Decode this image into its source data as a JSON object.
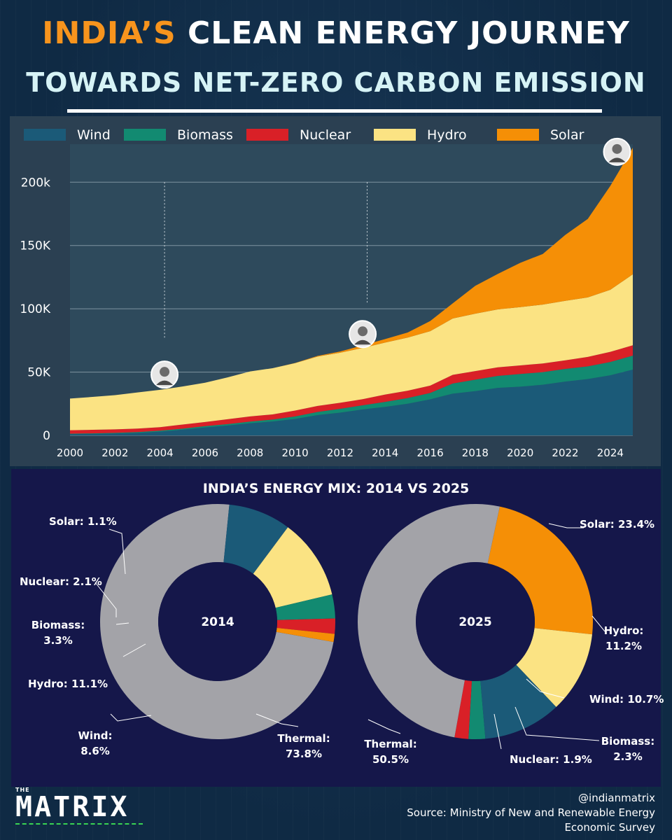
{
  "header": {
    "title_accent": "INDIA’S",
    "title_rest": "CLEAN ENERGY JOURNEY",
    "subtitle": "TOWARDS NET-ZERO CARBON EMISSION"
  },
  "colors": {
    "wind": "#1b5a78",
    "biomass": "#128a71",
    "nuclear": "#d92027",
    "hydro": "#fbe383",
    "solar": "#f58f06",
    "thermal": "#a3a3a8"
  },
  "chart_data": [
    {
      "type": "area",
      "stacked": true,
      "title": "",
      "xlabel": "",
      "ylabel": "",
      "x": [
        2000,
        2001,
        2002,
        2003,
        2004,
        2005,
        2006,
        2007,
        2008,
        2009,
        2010,
        2011,
        2012,
        2013,
        2014,
        2015,
        2016,
        2017,
        2018,
        2019,
        2020,
        2021,
        2022,
        2023,
        2024,
        2025
      ],
      "ylim": [
        0,
        230000
      ],
      "xlim": [
        2000,
        2025
      ],
      "y_ticks": [
        "0",
        "50K",
        "100K",
        "150K",
        "200k"
      ],
      "x_ticks": [
        "2000",
        "2002",
        "2004",
        "2006",
        "2008",
        "2010",
        "2012",
        "2014",
        "2016",
        "2018",
        "2020",
        "2022",
        "2024"
      ],
      "legend": [
        "Wind",
        "Biomass",
        "Nuclear",
        "Hydro",
        "Solar"
      ],
      "legend_position": "top",
      "series": [
        {
          "name": "Wind",
          "values": [
            1000,
            1200,
            1500,
            2000,
            3000,
            4500,
            6300,
            7800,
            9600,
            11000,
            13000,
            16000,
            18000,
            20500,
            22500,
            25000,
            28500,
            33000,
            35000,
            37500,
            38500,
            40000,
            42500,
            44500,
            47500,
            52000
          ]
        },
        {
          "name": "Biomass",
          "values": [
            300,
            400,
            500,
            600,
            700,
            800,
            1000,
            1100,
            1300,
            1500,
            2000,
            2500,
            3000,
            3300,
            4000,
            4500,
            5000,
            8000,
            9000,
            9500,
            10000,
            10000,
            10000,
            10000,
            10500,
            11000
          ]
        },
        {
          "name": "Nuclear",
          "values": [
            2800,
            2800,
            2800,
            2800,
            2800,
            3300,
            3300,
            3900,
            4100,
            4100,
            4600,
            4800,
            4800,
            4800,
            5800,
            5800,
            5800,
            6800,
            6800,
            6800,
            6800,
            6800,
            6800,
            7500,
            8000,
            8200
          ]
        },
        {
          "name": "Hydro",
          "values": [
            25000,
            26000,
            27000,
            28500,
            29500,
            30000,
            31000,
            33000,
            35500,
            36500,
            37500,
            39000,
            39500,
            40500,
            41000,
            42000,
            43000,
            44500,
            45300,
            45700,
            46000,
            46500,
            47000,
            47000,
            49000,
            56000
          ]
        },
        {
          "name": "Solar",
          "values": [
            0,
            0,
            0,
            0,
            0,
            0,
            0,
            0,
            0,
            0,
            100,
            500,
            1000,
            2000,
            2800,
            4000,
            8000,
            12000,
            22000,
            28000,
            35000,
            40000,
            52000,
            62000,
            82000,
            100000
          ]
        }
      ]
    },
    {
      "type": "pie",
      "donut": true,
      "title": "INDIA’S ENERGY MIX: 2014 VS 2025",
      "center_label": "2014",
      "slices": [
        {
          "name": "Thermal",
          "value": 73.8,
          "label": "Thermal:\n73.8%"
        },
        {
          "name": "Wind",
          "value": 8.6,
          "label": "Wind:\n8.6%"
        },
        {
          "name": "Hydro",
          "value": 11.1,
          "label": "Hydro: 11.1%"
        },
        {
          "name": "Biomass",
          "value": 3.3,
          "label": "Biomass:\n3.3%"
        },
        {
          "name": "Nuclear",
          "value": 2.1,
          "label": "Nuclear: 2.1%"
        },
        {
          "name": "Solar",
          "value": 1.1,
          "label": "Solar: 1.1%"
        }
      ]
    },
    {
      "type": "pie",
      "donut": true,
      "title": "INDIA’S ENERGY MIX: 2014 VS 2025",
      "center_label": "2025",
      "slices": [
        {
          "name": "Solar",
          "value": 23.4,
          "label": "Solar: 23.4%"
        },
        {
          "name": "Hydro",
          "value": 11.2,
          "label": "Hydro:\n11.2%"
        },
        {
          "name": "Wind",
          "value": 10.7,
          "label": "Wind: 10.7%"
        },
        {
          "name": "Biomass",
          "value": 2.3,
          "label": "Biomass:\n2.3%"
        },
        {
          "name": "Nuclear",
          "value": 1.9,
          "label": "Nuclear: 1.9%"
        },
        {
          "name": "Thermal",
          "value": 50.5,
          "label": "Thermal:\n50.5%"
        }
      ]
    }
  ],
  "brand": {
    "small": "THE",
    "name": "MATRIX"
  },
  "credits": {
    "handle": "@indianmatrix",
    "source_line1": "Source: Ministry of New and Renewable Energy",
    "source_line2": "Economic Survey"
  }
}
